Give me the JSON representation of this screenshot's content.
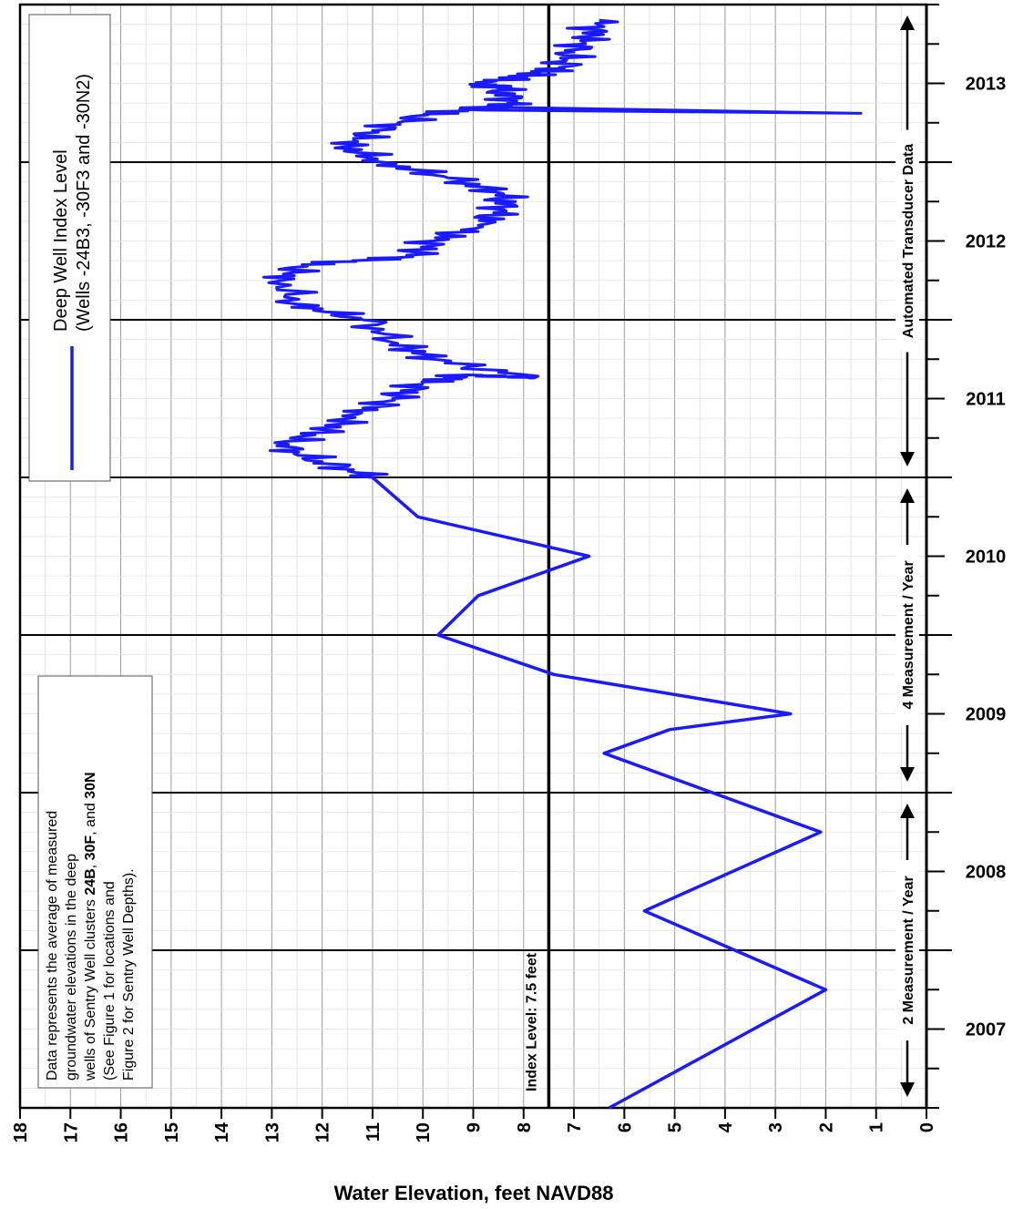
{
  "chart_data": {
    "type": "line",
    "xlabel": "Water Elevation, feet NAVD88",
    "ylabel": "",
    "xlim": [
      18,
      0
    ],
    "ylim": [
      2006.5,
      2013.5
    ],
    "x_ticks": [
      18,
      17,
      16,
      15,
      14,
      13,
      12,
      11,
      10,
      9,
      8,
      7,
      6,
      5,
      4,
      3,
      2,
      1,
      0
    ],
    "year_labels": [
      "2007",
      "2008",
      "2009",
      "2010",
      "2011",
      "2012",
      "2013"
    ],
    "year_values": [
      2007,
      2008,
      2009,
      2010,
      2011,
      2012,
      2013
    ],
    "index_level": {
      "value": 7.5,
      "label": "Index Level: 7.5 feet"
    },
    "legend": {
      "line1": "Deep Well Index Level",
      "line2": "(Wells -24B3, -30F3 and -30N2)",
      "color": "#1a1aff",
      "placement": "top-left"
    },
    "note": {
      "lines": [
        [
          {
            "t": "Data represents the average of measured",
            "b": false
          }
        ],
        [
          {
            "t": "groundwater elevations in the deep",
            "b": false
          }
        ],
        [
          {
            "t": "wells of Sentry Well clusters ",
            "b": false
          },
          {
            "t": "24B",
            "b": true
          },
          {
            "t": ", ",
            "b": false
          },
          {
            "t": "30F",
            "b": true
          },
          {
            "t": ", and ",
            "b": false
          },
          {
            "t": "30N",
            "b": true
          }
        ],
        [
          {
            "t": "(See Figure 1 for locations and",
            "b": false
          }
        ],
        [
          {
            "t": "Figure 2 for Sentry Well Depths).",
            "b": false
          }
        ]
      ]
    },
    "periods": [
      {
        "label": "2 Measurement / Year",
        "start": 2006.5,
        "end": 2008.5
      },
      {
        "label": "4 Measurement / Year",
        "start": 2008.5,
        "end": 2010.5
      },
      {
        "label": "Automated Transducer Data",
        "start": 2010.5,
        "end": 2013.5
      }
    ],
    "series": [
      {
        "name": "Deep Well Index Level",
        "color": "#1a1aff",
        "manual_points": [
          [
            6.3,
            2006.5
          ],
          [
            2.0,
            2007.25
          ],
          [
            5.6,
            2007.75
          ],
          [
            2.1,
            2008.25
          ],
          [
            6.4,
            2008.75
          ],
          [
            5.1,
            2008.9
          ],
          [
            2.7,
            2009.0
          ],
          [
            7.4,
            2009.25
          ],
          [
            9.7,
            2009.5
          ],
          [
            8.9,
            2009.75
          ],
          [
            6.7,
            2010.0
          ],
          [
            10.1,
            2010.25
          ],
          [
            11.0,
            2010.5
          ]
        ],
        "transducer_points": [
          [
            11.0,
            2010.5
          ],
          [
            12.0,
            2010.6
          ],
          [
            12.9,
            2010.7
          ],
          [
            11.9,
            2010.8
          ],
          [
            11.3,
            2010.9
          ],
          [
            10.6,
            2011.0
          ],
          [
            10.0,
            2011.1
          ],
          [
            9.1,
            2011.15
          ],
          [
            7.8,
            2011.13
          ],
          [
            9.8,
            2011.25
          ],
          [
            10.5,
            2011.35
          ],
          [
            11.2,
            2011.5
          ],
          [
            12.5,
            2011.6
          ],
          [
            12.8,
            2011.75
          ],
          [
            12.4,
            2011.85
          ],
          [
            10.2,
            2011.9
          ],
          [
            9.8,
            2012.0
          ],
          [
            8.9,
            2012.1
          ],
          [
            8.4,
            2012.2
          ],
          [
            8.4,
            2012.3
          ],
          [
            9.5,
            2012.4
          ],
          [
            10.8,
            2012.5
          ],
          [
            11.5,
            2012.6
          ],
          [
            11.0,
            2012.7
          ],
          [
            9.9,
            2012.8
          ],
          [
            8.7,
            2012.85
          ],
          [
            1.3,
            2012.81
          ],
          [
            8.8,
            2012.83
          ],
          [
            8.2,
            2012.88
          ],
          [
            8.5,
            2012.97
          ],
          [
            8.8,
            2013.0
          ],
          [
            7.9,
            2013.05
          ],
          [
            7.3,
            2013.1
          ],
          [
            7.0,
            2013.2
          ],
          [
            6.7,
            2013.3
          ],
          [
            6.5,
            2013.4
          ]
        ]
      }
    ]
  }
}
